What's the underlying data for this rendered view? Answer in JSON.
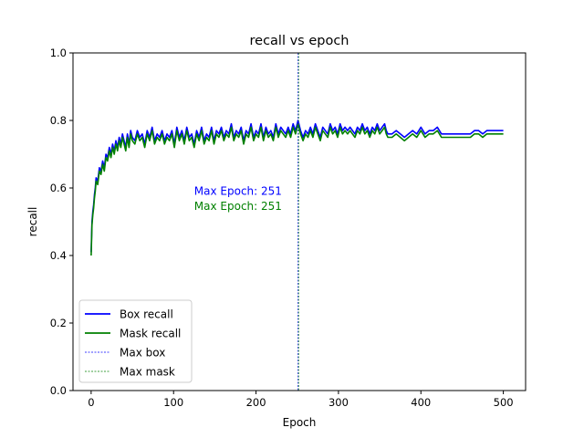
{
  "chart_data": {
    "type": "line",
    "title": "recall vs epoch",
    "xlabel": "Epoch",
    "ylabel": "recall",
    "xlim": [
      -22,
      527
    ],
    "ylim": [
      0.0,
      1.0
    ],
    "xticks": [
      0,
      100,
      200,
      300,
      400,
      500
    ],
    "yticks": [
      0.0,
      0.2,
      0.4,
      0.6,
      0.8,
      1.0
    ],
    "xtick_labels": [
      "0",
      "100",
      "200",
      "300",
      "400",
      "500"
    ],
    "ytick_labels": [
      "0.0",
      "0.2",
      "0.4",
      "0.6",
      "0.8",
      "1.0"
    ],
    "grid": false,
    "legend_position": "lower-left",
    "series": [
      {
        "name": "Box recall",
        "color": "#0000ff",
        "x": [
          0,
          1,
          2,
          3,
          4,
          5,
          6,
          8,
          10,
          12,
          14,
          16,
          18,
          20,
          22,
          24,
          26,
          28,
          30,
          32,
          34,
          36,
          38,
          40,
          42,
          44,
          46,
          48,
          50,
          53,
          56,
          59,
          62,
          65,
          68,
          71,
          74,
          77,
          80,
          83,
          86,
          89,
          92,
          95,
          98,
          101,
          104,
          107,
          110,
          113,
          116,
          119,
          122,
          125,
          128,
          131,
          134,
          137,
          140,
          143,
          146,
          149,
          152,
          155,
          158,
          161,
          164,
          167,
          170,
          173,
          176,
          179,
          182,
          185,
          188,
          191,
          194,
          197,
          200,
          203,
          206,
          209,
          212,
          215,
          218,
          221,
          224,
          227,
          230,
          233,
          236,
          239,
          242,
          245,
          248,
          251,
          254,
          257,
          260,
          263,
          266,
          269,
          272,
          275,
          278,
          281,
          284,
          287,
          290,
          293,
          296,
          299,
          302,
          305,
          308,
          311,
          314,
          317,
          320,
          323,
          326,
          329,
          332,
          335,
          338,
          341,
          344,
          347,
          350,
          353,
          356,
          358,
          360,
          365,
          370,
          375,
          380,
          385,
          390,
          395,
          400,
          405,
          410,
          415,
          420,
          425,
          430,
          435,
          440,
          445,
          450,
          455,
          460,
          465,
          470,
          475,
          480,
          485,
          490,
          495,
          500
        ],
        "values": [
          0.41,
          0.5,
          0.53,
          0.55,
          0.58,
          0.6,
          0.63,
          0.62,
          0.66,
          0.65,
          0.68,
          0.66,
          0.7,
          0.69,
          0.72,
          0.7,
          0.73,
          0.71,
          0.74,
          0.72,
          0.75,
          0.73,
          0.76,
          0.74,
          0.72,
          0.76,
          0.73,
          0.77,
          0.75,
          0.74,
          0.77,
          0.75,
          0.76,
          0.73,
          0.77,
          0.75,
          0.78,
          0.74,
          0.76,
          0.75,
          0.77,
          0.74,
          0.76,
          0.75,
          0.77,
          0.73,
          0.78,
          0.75,
          0.77,
          0.74,
          0.78,
          0.75,
          0.76,
          0.73,
          0.77,
          0.75,
          0.78,
          0.74,
          0.76,
          0.75,
          0.78,
          0.74,
          0.77,
          0.76,
          0.78,
          0.75,
          0.77,
          0.76,
          0.79,
          0.75,
          0.77,
          0.76,
          0.78,
          0.74,
          0.77,
          0.76,
          0.79,
          0.75,
          0.77,
          0.76,
          0.79,
          0.75,
          0.78,
          0.76,
          0.77,
          0.75,
          0.79,
          0.76,
          0.78,
          0.77,
          0.76,
          0.78,
          0.76,
          0.79,
          0.77,
          0.8,
          0.77,
          0.75,
          0.77,
          0.76,
          0.78,
          0.76,
          0.79,
          0.77,
          0.75,
          0.78,
          0.77,
          0.76,
          0.79,
          0.77,
          0.78,
          0.76,
          0.79,
          0.77,
          0.78,
          0.77,
          0.78,
          0.77,
          0.76,
          0.78,
          0.77,
          0.79,
          0.77,
          0.78,
          0.76,
          0.78,
          0.77,
          0.79,
          0.77,
          0.78,
          0.79,
          0.77,
          0.76,
          0.76,
          0.77,
          0.76,
          0.75,
          0.76,
          0.77,
          0.76,
          0.78,
          0.76,
          0.77,
          0.77,
          0.78,
          0.76,
          0.76,
          0.76,
          0.76,
          0.76,
          0.76,
          0.76,
          0.76,
          0.77,
          0.77,
          0.76,
          0.77,
          0.77,
          0.77,
          0.77,
          0.77
        ]
      },
      {
        "name": "Mask recall",
        "color": "#008000",
        "x": [
          0,
          1,
          2,
          3,
          4,
          5,
          6,
          8,
          10,
          12,
          14,
          16,
          18,
          20,
          22,
          24,
          26,
          28,
          30,
          32,
          34,
          36,
          38,
          40,
          42,
          44,
          46,
          48,
          50,
          53,
          56,
          59,
          62,
          65,
          68,
          71,
          74,
          77,
          80,
          83,
          86,
          89,
          92,
          95,
          98,
          101,
          104,
          107,
          110,
          113,
          116,
          119,
          122,
          125,
          128,
          131,
          134,
          137,
          140,
          143,
          146,
          149,
          152,
          155,
          158,
          161,
          164,
          167,
          170,
          173,
          176,
          179,
          182,
          185,
          188,
          191,
          194,
          197,
          200,
          203,
          206,
          209,
          212,
          215,
          218,
          221,
          224,
          227,
          230,
          233,
          236,
          239,
          242,
          245,
          248,
          251,
          254,
          257,
          260,
          263,
          266,
          269,
          272,
          275,
          278,
          281,
          284,
          287,
          290,
          293,
          296,
          299,
          302,
          305,
          308,
          311,
          314,
          317,
          320,
          323,
          326,
          329,
          332,
          335,
          338,
          341,
          344,
          347,
          350,
          353,
          356,
          358,
          360,
          365,
          370,
          375,
          380,
          385,
          390,
          395,
          400,
          405,
          410,
          415,
          420,
          425,
          430,
          435,
          440,
          445,
          450,
          455,
          460,
          465,
          470,
          475,
          480,
          485,
          490,
          495,
          500
        ],
        "values": [
          0.4,
          0.49,
          0.52,
          0.54,
          0.57,
          0.59,
          0.62,
          0.61,
          0.65,
          0.64,
          0.67,
          0.65,
          0.69,
          0.68,
          0.71,
          0.69,
          0.72,
          0.7,
          0.73,
          0.71,
          0.74,
          0.72,
          0.75,
          0.73,
          0.71,
          0.75,
          0.72,
          0.76,
          0.74,
          0.73,
          0.76,
          0.74,
          0.75,
          0.72,
          0.76,
          0.74,
          0.77,
          0.73,
          0.75,
          0.74,
          0.76,
          0.73,
          0.75,
          0.74,
          0.76,
          0.72,
          0.77,
          0.74,
          0.76,
          0.73,
          0.77,
          0.74,
          0.75,
          0.72,
          0.76,
          0.74,
          0.77,
          0.73,
          0.75,
          0.74,
          0.77,
          0.73,
          0.76,
          0.75,
          0.77,
          0.74,
          0.76,
          0.75,
          0.78,
          0.74,
          0.76,
          0.75,
          0.77,
          0.73,
          0.76,
          0.75,
          0.78,
          0.74,
          0.76,
          0.75,
          0.78,
          0.74,
          0.77,
          0.75,
          0.76,
          0.74,
          0.78,
          0.75,
          0.77,
          0.76,
          0.75,
          0.77,
          0.75,
          0.78,
          0.76,
          0.79,
          0.76,
          0.74,
          0.76,
          0.75,
          0.77,
          0.75,
          0.78,
          0.76,
          0.74,
          0.77,
          0.76,
          0.75,
          0.78,
          0.76,
          0.77,
          0.75,
          0.78,
          0.76,
          0.77,
          0.76,
          0.77,
          0.76,
          0.75,
          0.77,
          0.76,
          0.78,
          0.76,
          0.77,
          0.75,
          0.77,
          0.76,
          0.78,
          0.76,
          0.77,
          0.78,
          0.76,
          0.75,
          0.75,
          0.76,
          0.75,
          0.74,
          0.75,
          0.76,
          0.75,
          0.77,
          0.75,
          0.76,
          0.76,
          0.77,
          0.75,
          0.75,
          0.75,
          0.75,
          0.75,
          0.75,
          0.75,
          0.75,
          0.76,
          0.76,
          0.75,
          0.76,
          0.76,
          0.76,
          0.76,
          0.76
        ]
      }
    ],
    "vlines": [
      {
        "name": "Max box",
        "x": 251,
        "color": "#0000ff",
        "style": "dashed"
      },
      {
        "name": "Max mask",
        "x": 251,
        "color": "#008000",
        "style": "dashed"
      }
    ],
    "annotations": [
      {
        "text": "Max Epoch: 251",
        "x": 125,
        "y": 0.59,
        "color": "#0000ff"
      },
      {
        "text": "Max Epoch: 251",
        "x": 125,
        "y": 0.546,
        "color": "#008000"
      }
    ],
    "legend": [
      {
        "label": "Box recall",
        "color": "#0000ff",
        "style": "solid"
      },
      {
        "label": "Mask recall",
        "color": "#008000",
        "style": "solid"
      },
      {
        "label": "Max box",
        "color": "#0000ff",
        "style": "dashed"
      },
      {
        "label": "Max mask",
        "color": "#008000",
        "style": "dashed"
      }
    ]
  }
}
